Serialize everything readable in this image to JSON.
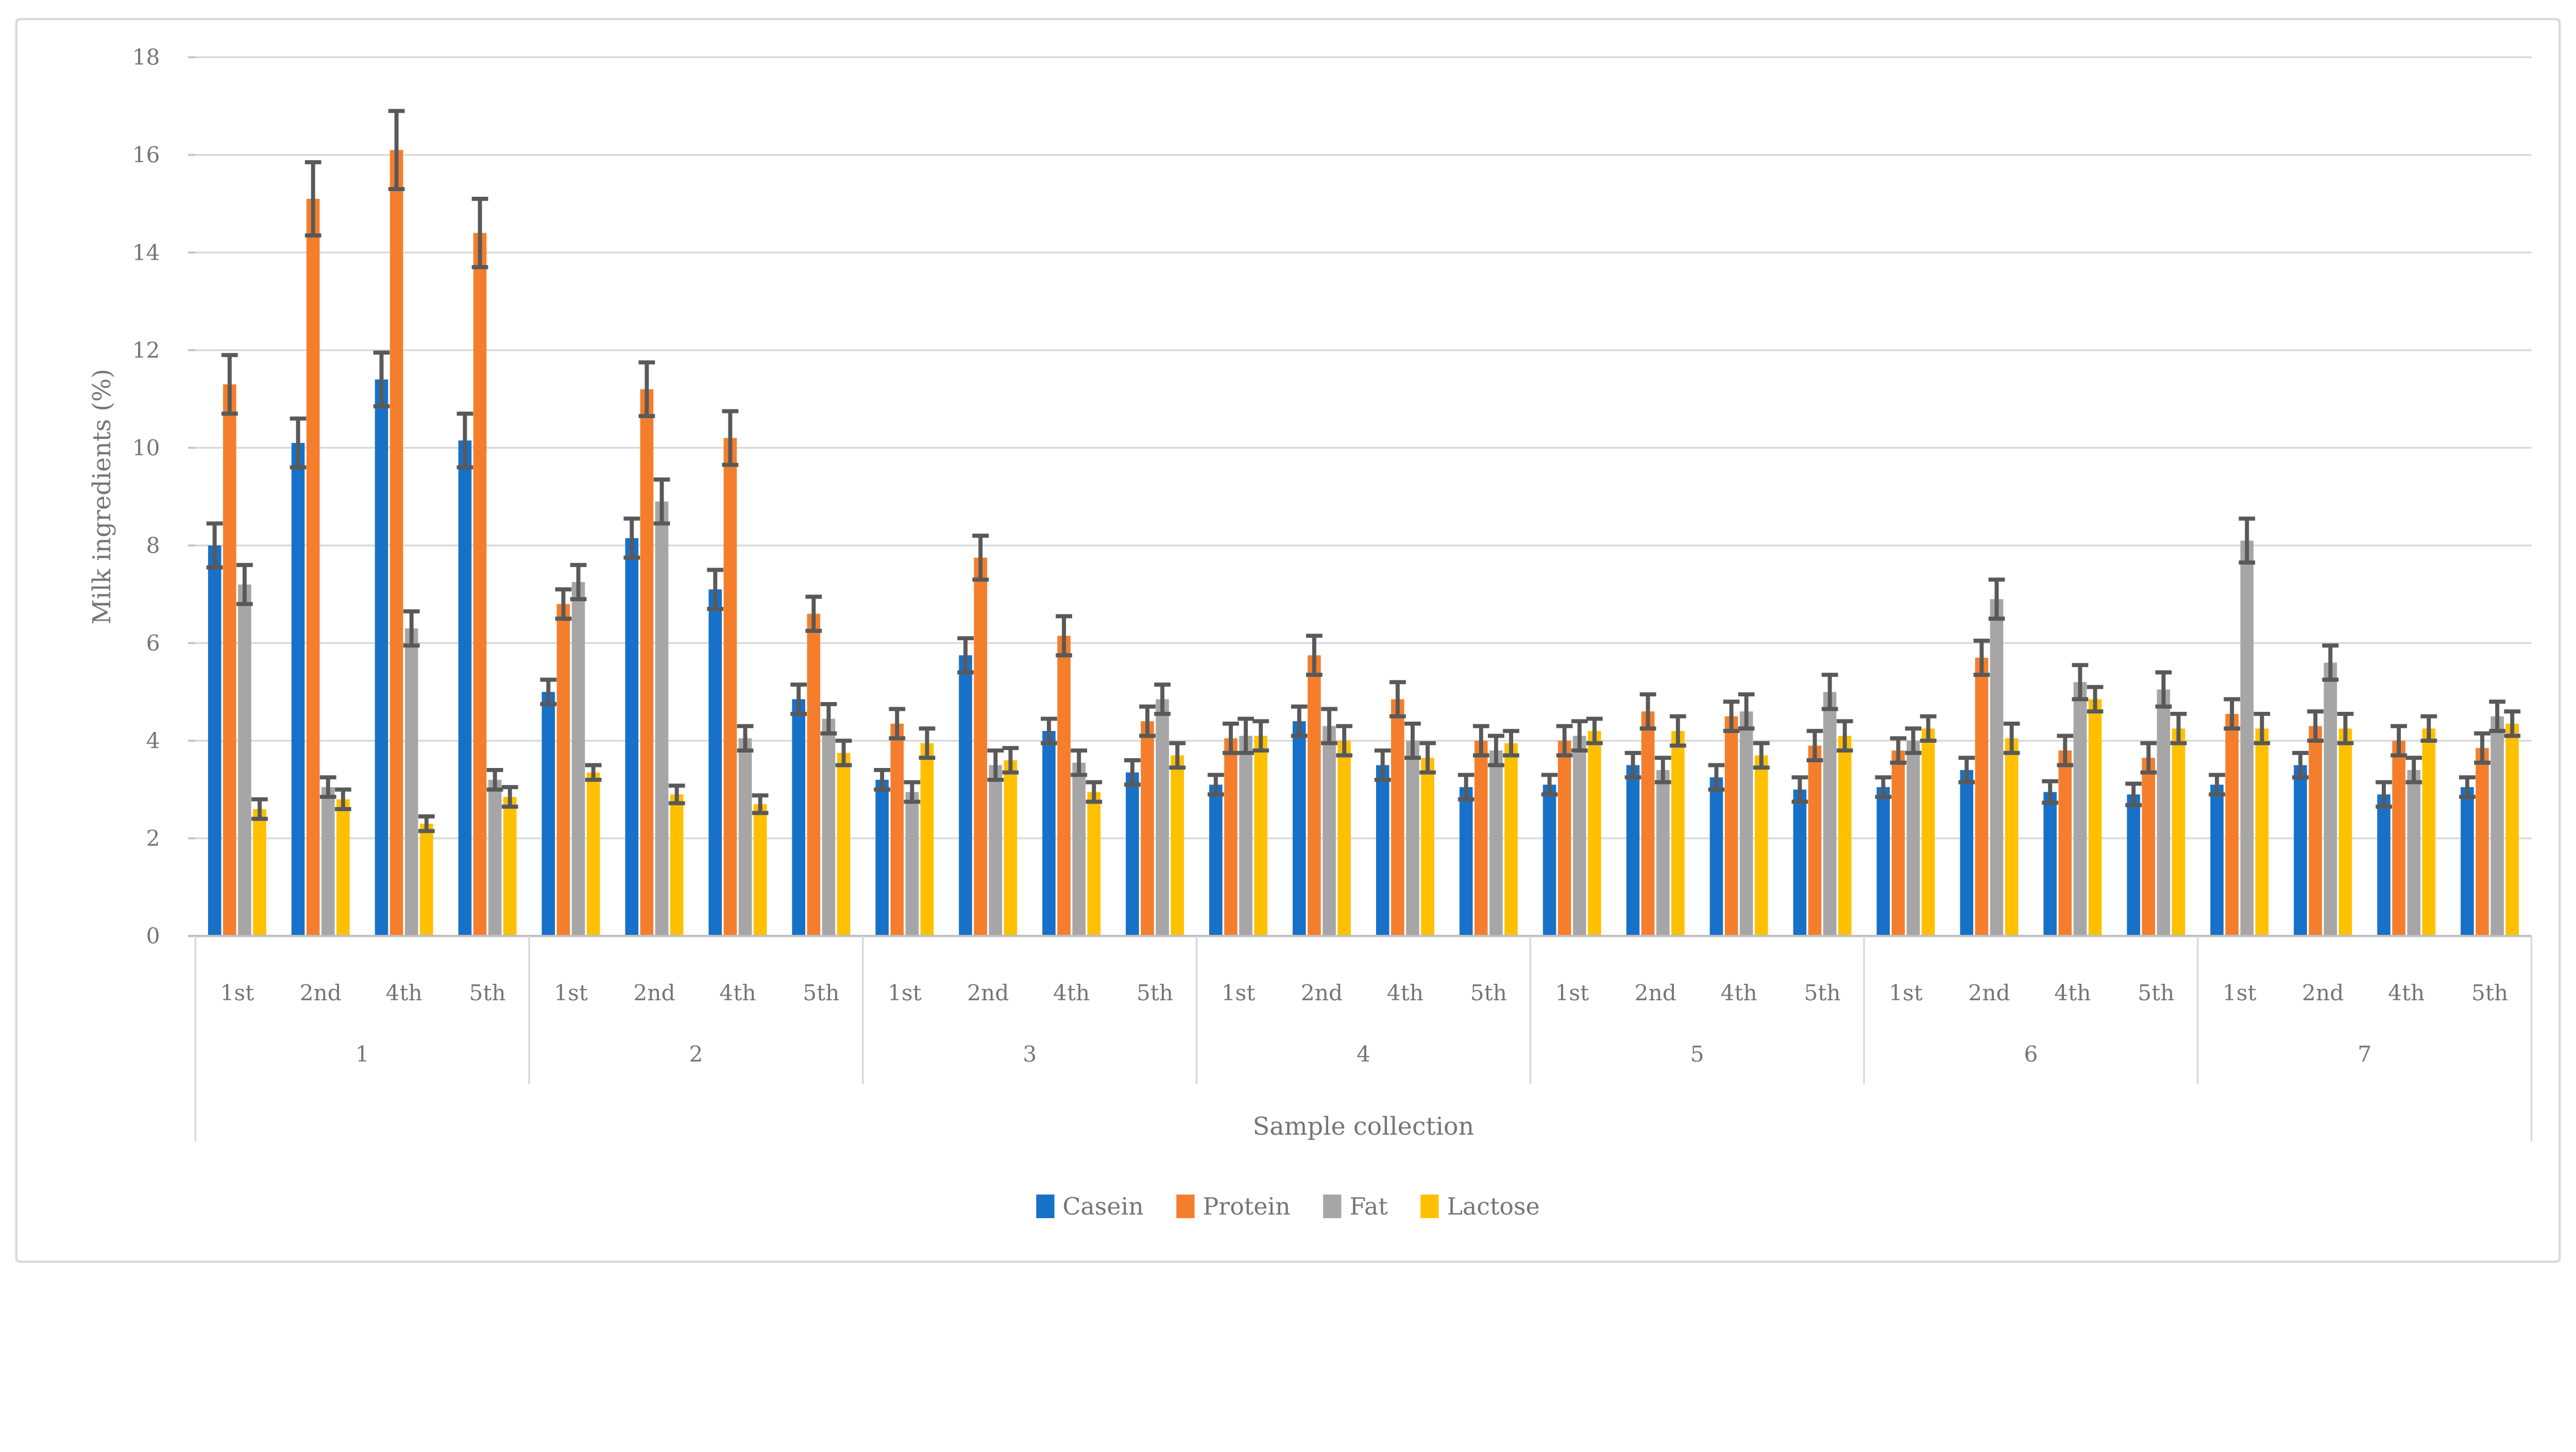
{
  "figure": {
    "background": "#FFFFFF",
    "border_color": "#D9D9D9"
  },
  "chart_data": {
    "type": "bar",
    "title": "",
    "ylabel": "Milk ingredients (%)",
    "xlabel": "Sample collection",
    "ylim": [
      0,
      18
    ],
    "ytick_step": 2,
    "ytick_labels": [
      "0",
      "2",
      "4",
      "6",
      "8",
      "10",
      "12",
      "14",
      "16",
      "18"
    ],
    "group_labels": [
      "1",
      "2",
      "3",
      "4",
      "5",
      "6",
      "7"
    ],
    "subgroup_labels": [
      "1st",
      "2nd",
      "4th",
      "5th"
    ],
    "grid": true,
    "legend_position": "bottom",
    "text_color": "#757575",
    "grid_color": "#D9D9D9",
    "axis_line_color": "#BFBFBF",
    "error_bar_color": "#595959",
    "series": [
      {
        "name": "Casein",
        "color": "#1771C8",
        "values": [
          8.0,
          10.1,
          11.4,
          10.15,
          5.0,
          8.15,
          7.1,
          4.85,
          3.2,
          5.75,
          4.2,
          3.35,
          3.1,
          4.4,
          3.5,
          3.05,
          3.1,
          3.5,
          3.25,
          3.0,
          3.05,
          3.4,
          2.95,
          2.9,
          3.1,
          3.5,
          2.9,
          3.05
        ],
        "errors": [
          0.45,
          0.5,
          0.55,
          0.55,
          0.25,
          0.4,
          0.4,
          0.3,
          0.2,
          0.35,
          0.25,
          0.25,
          0.2,
          0.3,
          0.3,
          0.25,
          0.2,
          0.25,
          0.25,
          0.25,
          0.2,
          0.25,
          0.22,
          0.22,
          0.2,
          0.25,
          0.25,
          0.2
        ]
      },
      {
        "name": "Protein",
        "color": "#F57E2C",
        "values": [
          11.3,
          15.1,
          16.1,
          14.4,
          6.8,
          11.2,
          10.2,
          6.6,
          4.35,
          7.75,
          6.15,
          4.4,
          4.05,
          5.75,
          4.85,
          4.0,
          4.0,
          4.6,
          4.5,
          3.9,
          3.8,
          5.7,
          3.8,
          3.65,
          4.55,
          4.3,
          4.0,
          3.85
        ],
        "errors": [
          0.6,
          0.75,
          0.8,
          0.7,
          0.3,
          0.55,
          0.55,
          0.35,
          0.3,
          0.45,
          0.4,
          0.3,
          0.3,
          0.4,
          0.35,
          0.3,
          0.3,
          0.35,
          0.3,
          0.3,
          0.25,
          0.35,
          0.3,
          0.3,
          0.3,
          0.3,
          0.3,
          0.3
        ]
      },
      {
        "name": "Fat",
        "color": "#A6A6A6",
        "values": [
          7.2,
          3.05,
          6.3,
          3.2,
          7.25,
          8.9,
          4.05,
          4.45,
          2.95,
          3.5,
          3.55,
          4.85,
          4.1,
          4.3,
          4.0,
          3.8,
          4.1,
          3.4,
          4.6,
          5.0,
          4.0,
          6.9,
          5.2,
          5.05,
          8.1,
          5.6,
          3.4,
          4.5
        ],
        "errors": [
          0.4,
          0.2,
          0.35,
          0.2,
          0.35,
          0.45,
          0.25,
          0.3,
          0.2,
          0.3,
          0.25,
          0.3,
          0.35,
          0.35,
          0.35,
          0.3,
          0.3,
          0.25,
          0.35,
          0.35,
          0.25,
          0.4,
          0.35,
          0.35,
          0.45,
          0.35,
          0.25,
          0.3
        ]
      },
      {
        "name": "Lactose",
        "color": "#FFC000",
        "values": [
          2.6,
          2.8,
          2.3,
          2.85,
          3.35,
          2.9,
          2.7,
          3.75,
          3.95,
          3.6,
          2.95,
          3.7,
          4.1,
          4.0,
          3.65,
          3.95,
          4.2,
          4.2,
          3.7,
          4.1,
          4.25,
          4.05,
          4.85,
          4.25,
          4.25,
          4.25,
          4.25,
          4.35
        ],
        "errors": [
          0.2,
          0.2,
          0.15,
          0.2,
          0.15,
          0.18,
          0.18,
          0.25,
          0.3,
          0.25,
          0.2,
          0.25,
          0.3,
          0.3,
          0.3,
          0.25,
          0.25,
          0.3,
          0.25,
          0.3,
          0.25,
          0.3,
          0.25,
          0.3,
          0.3,
          0.3,
          0.25,
          0.25
        ]
      }
    ]
  }
}
